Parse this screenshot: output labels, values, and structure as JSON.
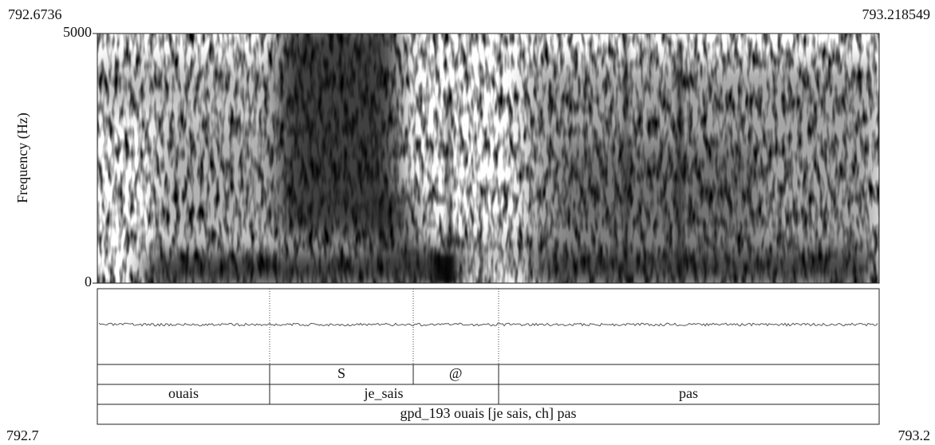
{
  "time_axis": {
    "top_start": "792.6736",
    "top_end": "793.218549",
    "bottom_start": "792.7",
    "bottom_end": "793.2"
  },
  "frequency_axis": {
    "label": "Frequency (Hz)",
    "top": "5000",
    "bottom": "0"
  },
  "tiers": [
    {
      "intervals": [
        "S",
        "@"
      ]
    },
    {
      "intervals": [
        "ouais",
        "je_sais",
        "pas"
      ]
    },
    {
      "intervals": [
        "gpd_193 ouais [je sais, ch] pas"
      ]
    }
  ]
}
